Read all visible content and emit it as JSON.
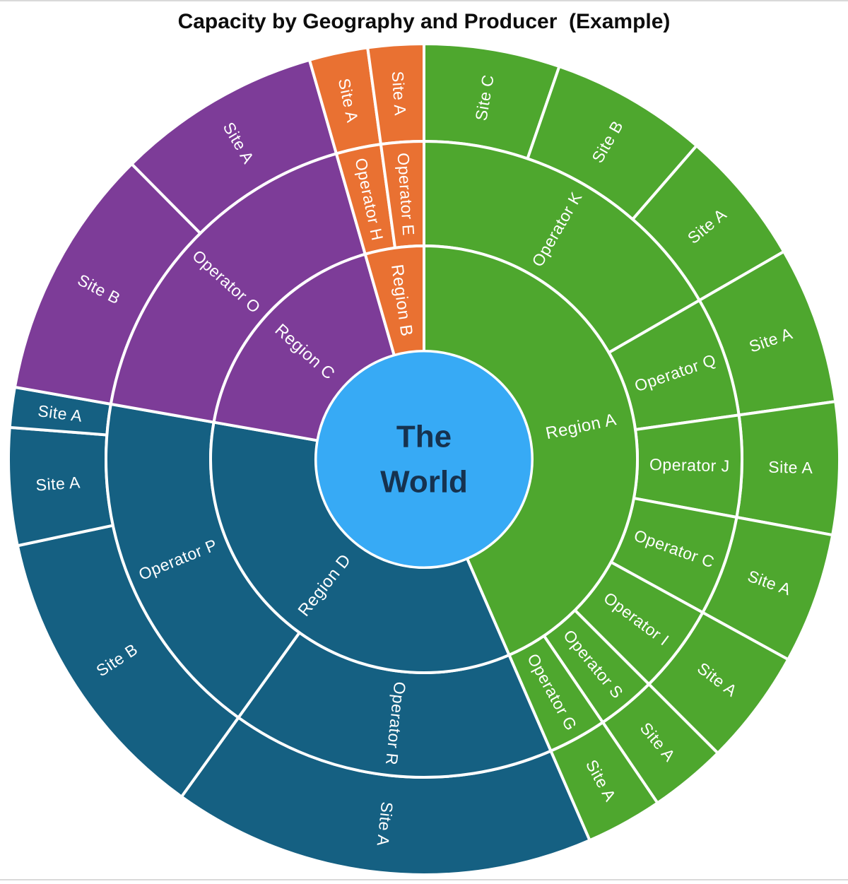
{
  "chart_data": {
    "type": "sunburst",
    "title": "Capacity by Geography and Producer  (Example)",
    "center_label": "The World",
    "center_label_lines": [
      "The",
      "World"
    ],
    "rings": [
      "Region",
      "Operator",
      "Site"
    ],
    "units": "degrees of arc (share of total, estimated from image)",
    "total_deg": 360,
    "colors": {
      "center": "#37AAF5",
      "center_text": "#16324F",
      "separator": "#FFFFFF",
      "label_text": "#FFFFFF",
      "title_text": "#0D0D0D",
      "region_a": "#4EA72E",
      "region_b": "#E97132",
      "region_c": "#7D3C98",
      "region_d": "#156082"
    },
    "regions": [
      {
        "name": "Region A",
        "color": "#4EA72E",
        "span_deg": 156.5,
        "operators": [
          {
            "name": "Operator K",
            "span_deg": 60,
            "sites": [
              {
                "name": "Site C",
                "span_deg": 19
              },
              {
                "name": "Site B",
                "span_deg": 22
              },
              {
                "name": "Site A",
                "span_deg": 19
              }
            ]
          },
          {
            "name": "Operator Q",
            "span_deg": 22,
            "sites": [
              {
                "name": "Site A",
                "span_deg": 22
              }
            ]
          },
          {
            "name": "Operator J",
            "span_deg": 18.5,
            "sites": [
              {
                "name": "Site A",
                "span_deg": 18.5
              }
            ]
          },
          {
            "name": "Operator C",
            "span_deg": 18.3,
            "sites": [
              {
                "name": "Site A",
                "span_deg": 18.3
              }
            ]
          },
          {
            "name": "Operator I",
            "span_deg": 16.2,
            "sites": [
              {
                "name": "Site A",
                "span_deg": 16.2
              }
            ]
          },
          {
            "name": "Operator S",
            "span_deg": 10.8,
            "sites": [
              {
                "name": "Site A",
                "span_deg": 10.8
              }
            ]
          },
          {
            "name": "Operator G",
            "span_deg": 10.7,
            "sites": [
              {
                "name": "Site A",
                "span_deg": 10.7
              }
            ]
          }
        ]
      },
      {
        "name": "Region D",
        "color": "#156082",
        "span_deg": 123.5,
        "operators": [
          {
            "name": "Operator R",
            "span_deg": 59.2,
            "sites": [
              {
                "name": "Site A",
                "span_deg": 59.2
              }
            ]
          },
          {
            "name": "Operator P",
            "span_deg": 64.3,
            "sites": [
              {
                "name": "Site B",
                "span_deg": 42.3
              },
              {
                "name": "Site A",
                "span_deg": 16.4
              },
              {
                "name": "Site A",
                "span_deg": 5.6
              }
            ]
          }
        ]
      },
      {
        "name": "Region C",
        "color": "#7D3C98",
        "span_deg": 64,
        "operators": [
          {
            "name": "Operator O",
            "span_deg": 64,
            "sites": [
              {
                "name": "Site B",
                "span_deg": 35.3
              },
              {
                "name": "Site A",
                "span_deg": 28.7
              }
            ]
          }
        ]
      },
      {
        "name": "Region B",
        "color": "#E97132",
        "span_deg": 16,
        "operators": [
          {
            "name": "Operator H",
            "span_deg": 8.2,
            "sites": [
              {
                "name": "Site A",
                "span_deg": 8.2
              }
            ]
          },
          {
            "name": "Operator E",
            "span_deg": 7.8,
            "sites": [
              {
                "name": "Site A",
                "span_deg": 7.8
              }
            ]
          }
        ]
      }
    ]
  }
}
